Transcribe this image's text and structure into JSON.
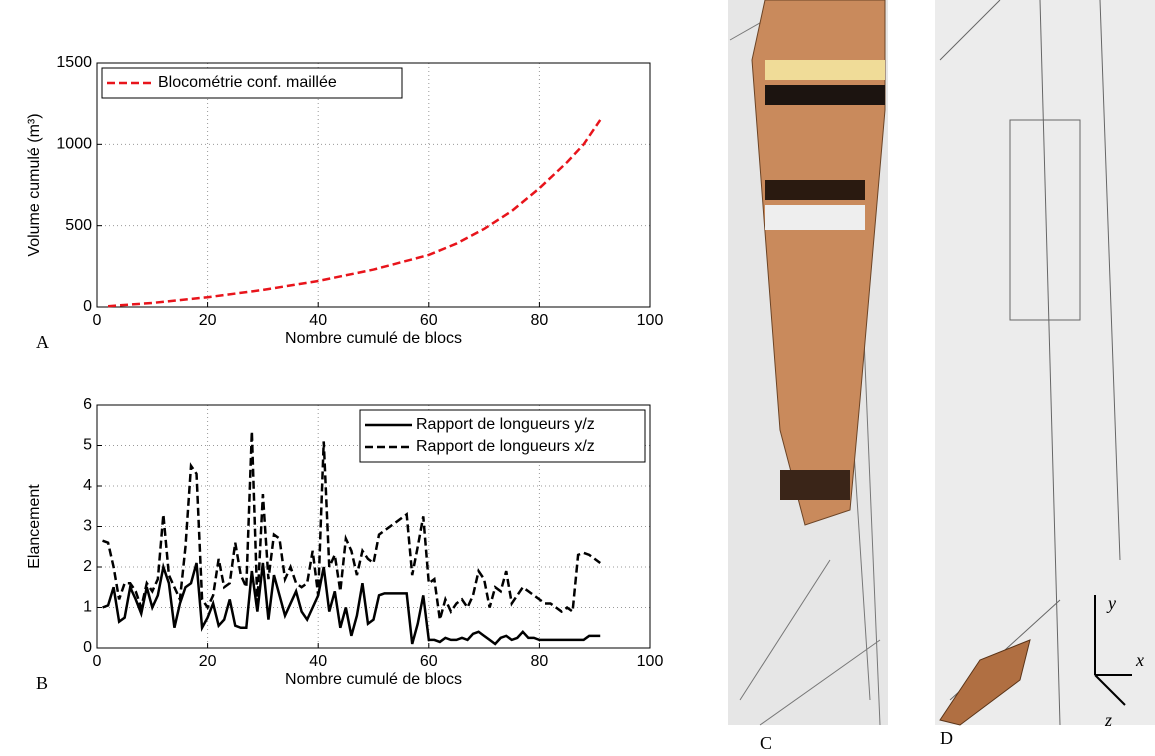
{
  "chart_data": [
    {
      "type": "line",
      "panel_label": "A",
      "xlabel": "Nombre cumulé de blocs",
      "ylabel": "Volume cumulé (m³)",
      "x": [
        2,
        10,
        20,
        30,
        40,
        50,
        60,
        65,
        70,
        75,
        80,
        85,
        88,
        91
      ],
      "series": [
        {
          "name": "Blocométrie conf. maillée",
          "color": "#e8141b",
          "linestyle": "dashed",
          "values": [
            5,
            25,
            60,
            105,
            160,
            230,
            320,
            390,
            480,
            590,
            730,
            890,
            1000,
            1150
          ]
        }
      ],
      "xlim": [
        0,
        100
      ],
      "xticks": [
        0,
        20,
        40,
        60,
        80,
        100
      ],
      "ylim": [
        0,
        1500
      ],
      "yticks": [
        0,
        500,
        1000,
        1500
      ],
      "grid": true,
      "legend": "upper-left"
    },
    {
      "type": "line",
      "panel_label": "B",
      "xlabel": "Nombre cumulé de blocs",
      "ylabel": "Elancement",
      "x": [
        1,
        2,
        3,
        4,
        5,
        6,
        7,
        8,
        9,
        10,
        11,
        12,
        13,
        14,
        15,
        16,
        17,
        18,
        19,
        20,
        21,
        22,
        23,
        24,
        25,
        26,
        27,
        28,
        29,
        30,
        31,
        32,
        33,
        34,
        35,
        36,
        37,
        38,
        39,
        40,
        41,
        42,
        43,
        44,
        45,
        46,
        47,
        48,
        49,
        50,
        51,
        52,
        53,
        54,
        55,
        56,
        57,
        58,
        59,
        60,
        61,
        62,
        63,
        64,
        65,
        66,
        67,
        68,
        69,
        70,
        71,
        72,
        73,
        74,
        75,
        76,
        77,
        78,
        79,
        80,
        81,
        82,
        83,
        84,
        85,
        86,
        87,
        88,
        89,
        90,
        91
      ],
      "series": [
        {
          "name": "Rapport de longueurs y/z",
          "color": "#000000",
          "linestyle": "solid",
          "values": [
            1.0,
            1.05,
            1.5,
            0.65,
            0.75,
            1.5,
            1.2,
            0.85,
            1.5,
            1.0,
            1.3,
            2.0,
            1.6,
            0.5,
            1.1,
            1.5,
            1.6,
            2.1,
            0.5,
            0.75,
            1.1,
            0.55,
            0.7,
            1.2,
            0.55,
            0.5,
            0.5,
            1.9,
            0.9,
            2.1,
            0.7,
            1.8,
            1.3,
            0.8,
            1.1,
            1.4,
            0.9,
            0.7,
            1.0,
            1.3,
            2.0,
            0.9,
            1.4,
            0.5,
            1.0,
            0.3,
            0.8,
            1.6,
            0.6,
            0.7,
            1.3,
            1.35,
            1.35,
            1.35,
            1.35,
            1.35,
            0.1,
            0.6,
            1.3,
            0.2,
            0.2,
            0.15,
            0.25,
            0.2,
            0.2,
            0.25,
            0.2,
            0.35,
            0.4,
            0.3,
            0.2,
            0.1,
            0.25,
            0.3,
            0.2,
            0.25,
            0.4,
            0.25,
            0.25,
            0.2,
            0.2,
            0.2,
            0.2,
            0.2,
            0.2,
            0.2,
            0.2,
            0.2,
            0.3,
            0.3,
            0.3
          ]
        },
        {
          "name": "Rapport de longueurs x/z",
          "color": "#000000",
          "linestyle": "dashed",
          "values": [
            2.65,
            2.6,
            2.0,
            1.2,
            1.6,
            1.6,
            1.4,
            1.0,
            1.6,
            1.4,
            1.7,
            3.3,
            1.8,
            1.5,
            1.2,
            2.5,
            4.5,
            4.3,
            1.2,
            1.0,
            1.3,
            2.2,
            1.5,
            1.6,
            2.6,
            1.8,
            1.5,
            5.35,
            1.1,
            3.8,
            1.7,
            2.8,
            2.7,
            1.7,
            2.0,
            1.6,
            1.5,
            1.6,
            2.4,
            1.3,
            5.1,
            2.0,
            2.3,
            1.4,
            2.7,
            2.4,
            1.8,
            2.4,
            2.2,
            2.1,
            2.8,
            2.9,
            3.0,
            3.1,
            3.2,
            3.3,
            1.8,
            2.5,
            3.25,
            1.6,
            1.7,
            0.7,
            1.2,
            0.9,
            1.1,
            1.2,
            1.0,
            1.3,
            1.9,
            1.7,
            1.0,
            1.5,
            1.4,
            1.9,
            1.1,
            1.3,
            1.5,
            1.4,
            1.3,
            1.2,
            1.1,
            1.1,
            1.0,
            0.9,
            1.0,
            0.9,
            2.3,
            2.35,
            2.3,
            2.2,
            2.1
          ]
        }
      ],
      "xlim": [
        0,
        100
      ],
      "xticks": [
        0,
        20,
        40,
        60,
        80,
        100
      ],
      "ylim": [
        0,
        6
      ],
      "yticks": [
        0,
        1,
        2,
        3,
        4,
        5,
        6
      ],
      "grid": true,
      "legend": "upper-right"
    }
  ],
  "panels": [
    {
      "label": "C"
    },
    {
      "label": "D"
    }
  ],
  "triad": {
    "x": "x",
    "y": "y",
    "z": "z"
  }
}
